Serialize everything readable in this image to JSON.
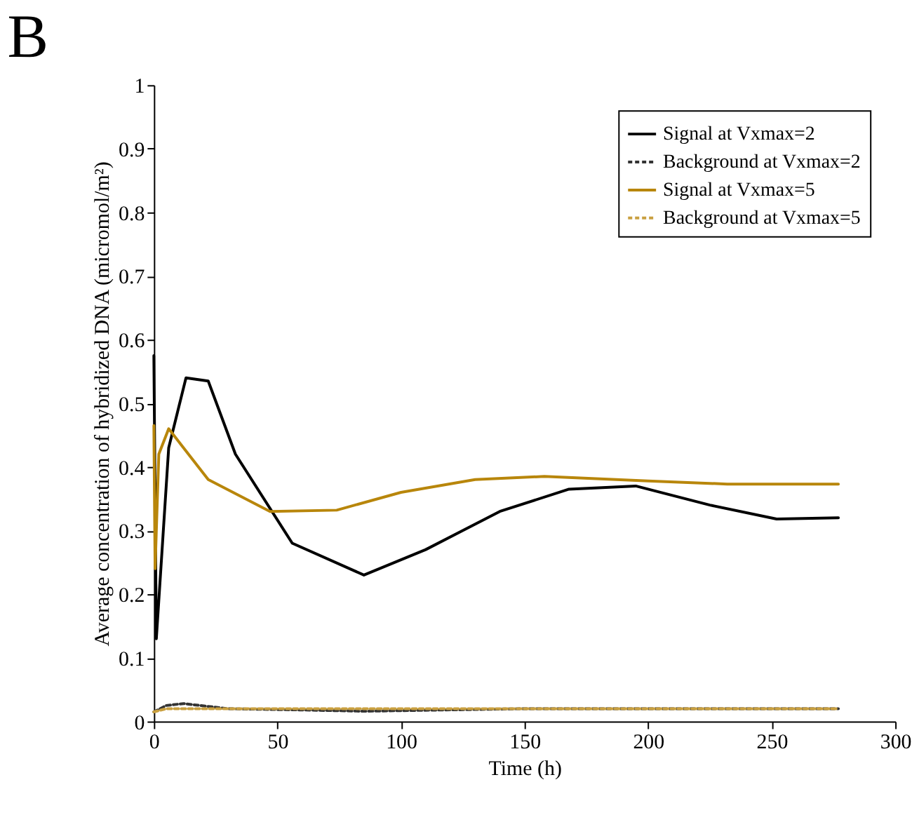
{
  "chart_data": {
    "type": "line",
    "title": "B",
    "xlabel": "Time (h)",
    "ylabel": "Average concentration of hybridized DNA (micromol/m²)",
    "xlim": [
      0,
      300
    ],
    "xticks": [
      0,
      50,
      100,
      150,
      200,
      250,
      300
    ],
    "ylim": [
      0,
      1
    ],
    "yticks": [
      0,
      0.1,
      0.2,
      0.3,
      0.4,
      0.5,
      0.6,
      0.7,
      0.8,
      0.9,
      1
    ],
    "grid": false,
    "legend": "top right",
    "series": [
      {
        "name": "Signal at Vxmax=2",
        "color": "#000000",
        "line_style": "solid",
        "x": [
          0,
          1,
          6,
          13,
          22,
          33,
          56,
          85,
          110,
          140,
          168,
          195,
          225,
          252,
          277
        ],
        "values": [
          0.575,
          0.13,
          0.43,
          0.54,
          0.535,
          0.42,
          0.28,
          0.23,
          0.27,
          0.33,
          0.365,
          0.37,
          0.34,
          0.318,
          0.32
        ]
      },
      {
        "name": "Background at Vxmax=2",
        "color": "#333333",
        "line_style": "dashed",
        "x": [
          0,
          5,
          12,
          30,
          60,
          85,
          150,
          277
        ],
        "values": [
          0.015,
          0.025,
          0.028,
          0.02,
          0.018,
          0.016,
          0.02,
          0.02
        ]
      },
      {
        "name": "Signal at Vxmax=5",
        "color": "#b8860b",
        "line_style": "solid",
        "x": [
          0,
          0.5,
          2,
          6,
          22,
          47,
          74,
          100,
          130,
          158,
          200,
          232,
          277
        ],
        "values": [
          0.465,
          0.24,
          0.42,
          0.46,
          0.38,
          0.33,
          0.332,
          0.36,
          0.38,
          0.385,
          0.378,
          0.373,
          0.373
        ]
      },
      {
        "name": "Background at Vxmax=5",
        "color": "#c9a040",
        "line_style": "dashed",
        "x": [
          0,
          5,
          50,
          277
        ],
        "values": [
          0.015,
          0.02,
          0.02,
          0.02
        ]
      }
    ]
  }
}
